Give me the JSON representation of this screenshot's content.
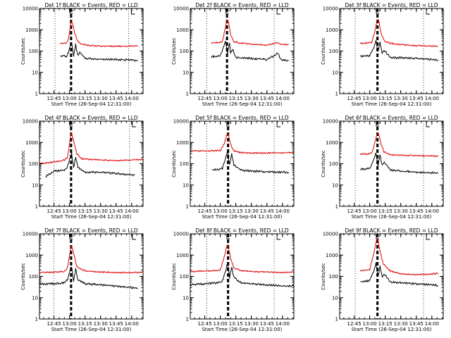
{
  "figure": {
    "colors": {
      "events": "#000000",
      "lld": "#dd0000",
      "axes": "#000000",
      "background": "#ffffff"
    }
  },
  "chart_data": [
    {
      "type": "line",
      "title": "Det 1f BLACK = Events, RED = LLD",
      "xlabel": "Start Time (26-Sep-04 12:31:00)",
      "ylabel": "Counts/sec",
      "yscale": "log",
      "ylim": [
        1,
        10000
      ],
      "xlim": [
        "12:31",
        "14:11"
      ],
      "x_ticks": [
        "12:45",
        "13:00",
        "13:15",
        "13:30",
        "13:45",
        "14:00"
      ],
      "y_ticks": [
        "1",
        "10",
        "100",
        "1000",
        "10000"
      ],
      "reference_lines": {
        "dotted": [
          "12:46",
          "13:57"
        ],
        "dashed": [
          "13:01",
          "13:02"
        ]
      },
      "series": [
        {
          "color": "#dd0000",
          "x": [
            "12:51",
            "12:55",
            "12:58",
            "13:00",
            "13:01",
            "13:02",
            "13:03",
            "13:05",
            "13:08",
            "13:12",
            "13:20",
            "13:30",
            "13:45",
            "14:00",
            "14:06"
          ],
          "values": [
            220,
            230,
            260,
            700,
            1900,
            2600,
            2000,
            700,
            280,
            210,
            180,
            170,
            170,
            170,
            180
          ]
        },
        {
          "color": "#000000",
          "x": [
            "12:51",
            "12:53",
            "12:57",
            "12:59",
            "13:00",
            "13:02",
            "13:04",
            "13:06",
            "13:08",
            "13:10",
            "13:15",
            "13:30",
            "13:45",
            "14:00",
            "14:06"
          ],
          "values": [
            55,
            60,
            55,
            90,
            140,
            250,
            60,
            200,
            60,
            90,
            45,
            42,
            40,
            38,
            35
          ]
        }
      ]
    },
    {
      "type": "line",
      "title": "Det 2f BLACK = Events, RED = LLD",
      "xlabel": "Start Time (26-Sep-04 12:31:00)",
      "ylabel": "Counts/sec",
      "yscale": "log",
      "ylim": [
        1,
        10000
      ],
      "xlim": [
        "12:31",
        "14:11"
      ],
      "x_ticks": [
        "12:45",
        "13:00",
        "13:15",
        "13:30",
        "13:45",
        "14:00"
      ],
      "y_ticks": [
        "1",
        "10",
        "100",
        "1000",
        "10000"
      ],
      "reference_lines": {
        "dotted": [
          "12:47",
          "13:52"
        ],
        "dashed": [
          "13:06",
          "13:07"
        ]
      },
      "series": [
        {
          "color": "#dd0000",
          "x": [
            "12:51",
            "12:58",
            "13:02",
            "13:04",
            "13:06",
            "13:07",
            "13:08",
            "13:10",
            "13:13",
            "13:18",
            "13:30",
            "13:45",
            "13:56",
            "13:58",
            "14:06"
          ],
          "values": [
            240,
            250,
            270,
            800,
            2400,
            3000,
            2200,
            600,
            280,
            240,
            210,
            190,
            250,
            210,
            200
          ]
        },
        {
          "color": "#000000",
          "x": [
            "12:51",
            "12:56",
            "13:00",
            "13:03",
            "13:05",
            "13:07",
            "13:09",
            "13:10",
            "13:12",
            "13:15",
            "13:30",
            "13:45",
            "13:56",
            "13:58",
            "14:06"
          ],
          "values": [
            55,
            55,
            60,
            150,
            300,
            80,
            250,
            80,
            120,
            50,
            45,
            40,
            80,
            40,
            35
          ]
        }
      ]
    },
    {
      "type": "line",
      "title": "Det 3f BLACK = Events, RED = LLD",
      "xlabel": "Start Time (26-Sep-04 12:31:00)",
      "ylabel": "Counts/sec",
      "yscale": "log",
      "ylim": [
        1,
        10000
      ],
      "xlim": [
        "12:31",
        "14:11"
      ],
      "x_ticks": [
        "12:45",
        "13:00",
        "13:15",
        "13:30",
        "13:45",
        "14:00"
      ],
      "y_ticks": [
        "1",
        "10",
        "100",
        "1000",
        "10000"
      ],
      "reference_lines": {
        "dotted": [
          "12:46",
          "13:52"
        ],
        "dashed": [
          "13:07",
          "13:08"
        ]
      },
      "series": [
        {
          "color": "#dd0000",
          "x": [
            "12:51",
            "12:58",
            "13:02",
            "13:05",
            "13:07",
            "13:08",
            "13:09",
            "13:11",
            "13:14",
            "13:20",
            "13:30",
            "13:45",
            "14:00",
            "14:06"
          ],
          "values": [
            230,
            240,
            260,
            900,
            2600,
            3000,
            2300,
            700,
            300,
            230,
            200,
            180,
            170,
            170
          ]
        },
        {
          "color": "#000000",
          "x": [
            "12:51",
            "12:56",
            "13:00",
            "13:04",
            "13:06",
            "13:08",
            "13:10",
            "13:12",
            "13:14",
            "13:20",
            "13:30",
            "13:45",
            "14:00",
            "14:06"
          ],
          "values": [
            55,
            60,
            60,
            150,
            300,
            90,
            250,
            80,
            110,
            50,
            48,
            45,
            40,
            38
          ]
        }
      ]
    },
    {
      "type": "line",
      "title": "Det 4f BLACK = Events, RED = LLD",
      "xlabel": "Start Time (26-Sep-04 12:31:00)",
      "ylabel": "Counts/sec",
      "yscale": "log",
      "ylim": [
        1,
        10000
      ],
      "xlim": [
        "12:31",
        "14:11"
      ],
      "x_ticks": [
        "12:45",
        "13:00",
        "13:15",
        "13:30",
        "13:45",
        "14:00"
      ],
      "y_ticks": [
        "1",
        "10",
        "100",
        "1000",
        "10000"
      ],
      "reference_lines": {
        "dotted": [
          "12:45",
          "13:58"
        ],
        "dashed": [
          "13:01",
          "13:02"
        ]
      },
      "series": [
        {
          "color": "#dd0000",
          "x": [
            "12:31",
            "12:45",
            "12:55",
            "12:58",
            "13:00",
            "13:01",
            "13:02",
            "13:04",
            "13:07",
            "13:12",
            "13:20",
            "13:30",
            "13:45",
            "14:00",
            "14:11"
          ],
          "values": [
            100,
            120,
            150,
            200,
            800,
            2300,
            2800,
            1200,
            300,
            170,
            160,
            150,
            140,
            150,
            160
          ]
        },
        {
          "color": "#000000",
          "x": [
            "12:37",
            "12:45",
            "12:55",
            "12:58",
            "13:00",
            "13:02",
            "13:04",
            "13:06",
            "13:08",
            "13:15",
            "13:30",
            "13:45",
            "14:00",
            "14:03"
          ],
          "values": [
            25,
            45,
            50,
            70,
            150,
            300,
            60,
            220,
            70,
            40,
            40,
            35,
            30,
            30
          ]
        }
      ]
    },
    {
      "type": "line",
      "title": "Det 5f BLACK = Events, RED = LLD",
      "xlabel": "Start Time (26-Sep-04 12:31:00)",
      "ylabel": "Counts/sec",
      "yscale": "log",
      "ylim": [
        1,
        10000
      ],
      "xlim": [
        "12:31",
        "14:11"
      ],
      "x_ticks": [
        "12:45",
        "13:00",
        "13:15",
        "13:30",
        "13:45",
        "14:00"
      ],
      "y_ticks": [
        "1",
        "10",
        "100",
        "1000",
        "10000"
      ],
      "reference_lines": {
        "dotted": [
          "12:47",
          "13:52"
        ],
        "dashed": [
          "13:07",
          "13:08"
        ]
      },
      "series": [
        {
          "color": "#dd0000",
          "x": [
            "12:31",
            "12:50",
            "13:00",
            "13:04",
            "13:06",
            "13:07",
            "13:08",
            "13:10",
            "13:13",
            "13:20",
            "13:30",
            "13:45",
            "14:00",
            "14:11"
          ],
          "values": [
            400,
            400,
            420,
            900,
            2200,
            2800,
            2000,
            800,
            400,
            330,
            320,
            320,
            330,
            330
          ]
        },
        {
          "color": "#000000",
          "x": [
            "12:52",
            "12:58",
            "13:02",
            "13:05",
            "13:07",
            "13:09",
            "13:11",
            "13:13",
            "13:20",
            "13:30",
            "13:45",
            "14:00",
            "14:06"
          ],
          "values": [
            50,
            55,
            60,
            180,
            400,
            90,
            280,
            90,
            50,
            45,
            42,
            40,
            40
          ]
        }
      ]
    },
    {
      "type": "line",
      "title": "Det 6f BLACK = Events, RED = LLD",
      "xlabel": "Start Time (26-Sep-04 12:31:00)",
      "ylabel": "Counts/sec",
      "yscale": "log",
      "ylim": [
        1,
        10000
      ],
      "xlim": [
        "12:31",
        "14:11"
      ],
      "x_ticks": [
        "12:45",
        "13:00",
        "13:15",
        "13:30",
        "13:45",
        "14:00"
      ],
      "y_ticks": [
        "1",
        "10",
        "100",
        "1000",
        "10000"
      ],
      "reference_lines": {
        "dotted": [
          "12:46",
          "13:52"
        ],
        "dashed": [
          "13:07",
          "13:08"
        ]
      },
      "series": [
        {
          "color": "#dd0000",
          "x": [
            "12:51",
            "12:58",
            "13:02",
            "13:05",
            "13:07",
            "13:08",
            "13:09",
            "13:11",
            "13:14",
            "13:20",
            "13:30",
            "13:45",
            "14:00",
            "14:06"
          ],
          "values": [
            280,
            290,
            310,
            1000,
            2600,
            3000,
            2200,
            800,
            350,
            260,
            250,
            240,
            230,
            230
          ]
        },
        {
          "color": "#000000",
          "x": [
            "12:51",
            "12:56",
            "13:00",
            "13:04",
            "13:06",
            "13:08",
            "13:10",
            "13:12",
            "13:14",
            "13:20",
            "13:30",
            "13:45",
            "14:00",
            "14:06"
          ],
          "values": [
            55,
            55,
            60,
            150,
            350,
            80,
            260,
            80,
            120,
            50,
            45,
            40,
            38,
            36
          ]
        }
      ]
    },
    {
      "type": "line",
      "title": "Det 7f BLACK = Events, RED = LLD",
      "xlabel": "Start Time (26-Sep-04 12:31:00)",
      "ylabel": "Counts/sec",
      "yscale": "log",
      "ylim": [
        1,
        10000
      ],
      "xlim": [
        "12:31",
        "14:11"
      ],
      "x_ticks": [
        "12:45",
        "13:00",
        "13:15",
        "13:30",
        "13:45",
        "14:00"
      ],
      "y_ticks": [
        "1",
        "10",
        "100",
        "1000",
        "10000"
      ],
      "reference_lines": {
        "dotted": [
          "12:45",
          "13:58"
        ],
        "dashed": [
          "13:01",
          "13:02"
        ]
      },
      "series": [
        {
          "color": "#dd0000",
          "x": [
            "12:31",
            "12:45",
            "12:55",
            "12:58",
            "13:00",
            "13:01",
            "13:02",
            "13:04",
            "13:07",
            "13:12",
            "13:20",
            "13:30",
            "13:45",
            "14:00",
            "14:11"
          ],
          "values": [
            150,
            160,
            170,
            250,
            900,
            2400,
            2800,
            1200,
            300,
            200,
            170,
            160,
            150,
            150,
            160
          ]
        },
        {
          "color": "#000000",
          "x": [
            "12:31",
            "12:45",
            "12:55",
            "12:58",
            "13:00",
            "13:02",
            "13:04",
            "13:06",
            "13:08",
            "13:15",
            "13:30",
            "13:45",
            "14:00",
            "14:06"
          ],
          "values": [
            45,
            45,
            50,
            70,
            160,
            300,
            60,
            230,
            70,
            45,
            40,
            35,
            30,
            28
          ]
        }
      ]
    },
    {
      "type": "line",
      "title": "Det 8f BLACK = Events, RED = LLD",
      "xlabel": "Start Time (26-Sep-04 12:31:00)",
      "ylabel": "Counts/sec",
      "yscale": "log",
      "ylim": [
        1,
        10000
      ],
      "xlim": [
        "12:31",
        "14:11"
      ],
      "x_ticks": [
        "12:45",
        "13:00",
        "13:15",
        "13:30",
        "13:45",
        "14:00"
      ],
      "y_ticks": [
        "1",
        "10",
        "100",
        "1000",
        "10000"
      ],
      "reference_lines": {
        "dotted": [
          "12:47",
          "13:52"
        ],
        "dashed": [
          "13:07",
          "13:08"
        ]
      },
      "series": [
        {
          "color": "#dd0000",
          "x": [
            "12:31",
            "12:50",
            "13:00",
            "13:04",
            "13:06",
            "13:07",
            "13:08",
            "13:10",
            "13:13",
            "13:20",
            "13:30",
            "13:45",
            "14:00",
            "14:11"
          ],
          "values": [
            170,
            180,
            200,
            900,
            2400,
            3000,
            2100,
            700,
            250,
            190,
            170,
            160,
            150,
            160
          ]
        },
        {
          "color": "#000000",
          "x": [
            "12:31",
            "12:45",
            "12:58",
            "13:02",
            "13:05",
            "13:07",
            "13:09",
            "13:11",
            "13:13",
            "13:20",
            "13:30",
            "13:45",
            "14:00",
            "14:11"
          ],
          "values": [
            40,
            45,
            50,
            60,
            180,
            400,
            90,
            270,
            90,
            50,
            45,
            40,
            35,
            35
          ]
        }
      ]
    },
    {
      "type": "line",
      "title": "Det 9f BLACK = Events, RED = LLD",
      "xlabel": "Start Time (26-Sep-04 12:31:00)",
      "ylabel": "Counts/sec",
      "yscale": "log",
      "ylim": [
        1,
        10000
      ],
      "xlim": [
        "12:31",
        "14:11"
      ],
      "x_ticks": [
        "12:45",
        "13:00",
        "13:15",
        "13:30",
        "13:45",
        "14:00"
      ],
      "y_ticks": [
        "1",
        "10",
        "100",
        "1000",
        "10000"
      ],
      "reference_lines": {
        "dotted": [
          "12:46",
          "13:52"
        ],
        "dashed": [
          "13:07",
          "13:08"
        ]
      },
      "series": [
        {
          "color": "#dd0000",
          "x": [
            "12:51",
            "12:55",
            "13:00",
            "13:04",
            "13:06",
            "13:07",
            "13:08",
            "13:10",
            "13:13",
            "13:20",
            "13:30",
            "13:45",
            "14:00",
            "14:06"
          ],
          "values": [
            180,
            190,
            210,
            1200,
            4000,
            6000,
            4500,
            1500,
            400,
            180,
            130,
            120,
            130,
            140
          ]
        },
        {
          "color": "#000000",
          "x": [
            "12:51",
            "12:56",
            "13:00",
            "13:04",
            "13:06",
            "13:08",
            "13:10",
            "13:12",
            "13:14",
            "13:20",
            "13:30",
            "13:45",
            "14:00",
            "14:06"
          ],
          "values": [
            55,
            60,
            65,
            180,
            400,
            100,
            300,
            90,
            130,
            55,
            50,
            45,
            40,
            38
          ]
        }
      ]
    }
  ]
}
